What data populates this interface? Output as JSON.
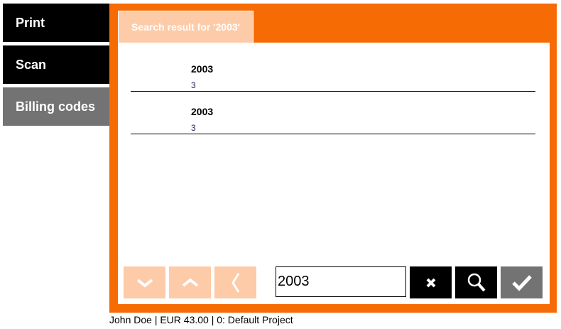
{
  "sidebar": {
    "items": [
      {
        "label": "Print",
        "color": "#000000"
      },
      {
        "label": "Scan",
        "color": "#000000"
      },
      {
        "label": "Billing codes",
        "color": "#737373"
      }
    ]
  },
  "tab": {
    "label": "Search result for '2003'"
  },
  "results": [
    {
      "title": "2003",
      "subtitle": "3"
    },
    {
      "title": "2003",
      "subtitle": "3"
    }
  ],
  "search": {
    "value": "2003"
  },
  "toolbar": {
    "buttons": [
      "chevron-down-icon",
      "chevron-up-icon",
      "chevron-left-icon",
      "close-icon",
      "search-icon",
      "check-icon"
    ]
  },
  "footer": {
    "status": "John Doe | EUR 43.00 | 0: Default Project"
  },
  "colors": {
    "accent": "#f76b05",
    "light": "#fdcba8"
  }
}
